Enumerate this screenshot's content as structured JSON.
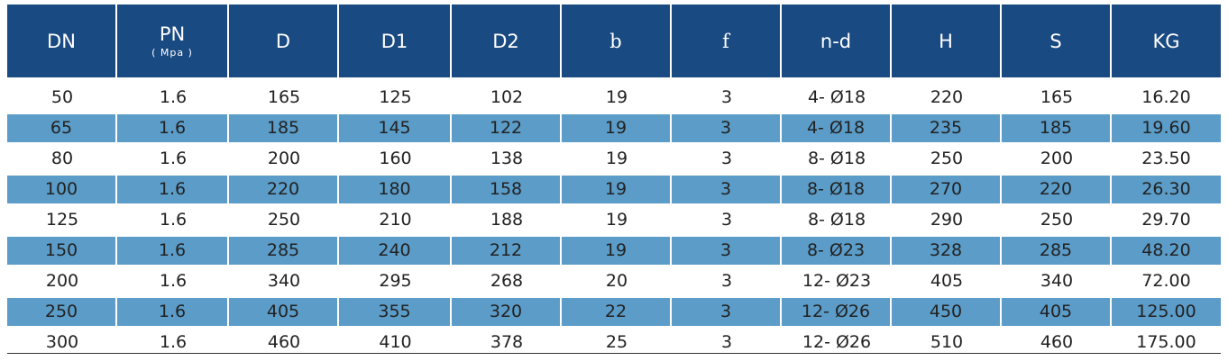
{
  "table": {
    "headers": [
      {
        "label": "DN",
        "sub": ""
      },
      {
        "label": "PN",
        "sub": "( Mpa )"
      },
      {
        "label": "D",
        "sub": ""
      },
      {
        "label": "D1",
        "sub": ""
      },
      {
        "label": "D2",
        "sub": ""
      },
      {
        "label": "b",
        "sub": ""
      },
      {
        "label": "f",
        "sub": ""
      },
      {
        "label": "n-d",
        "sub": ""
      },
      {
        "label": "H",
        "sub": ""
      },
      {
        "label": "S",
        "sub": ""
      },
      {
        "label": "KG",
        "sub": ""
      }
    ],
    "rows": [
      [
        "50",
        "1.6",
        "165",
        "125",
        "102",
        "19",
        "3",
        "4- Ø18",
        "220",
        "165",
        "16.20"
      ],
      [
        "65",
        "1.6",
        "185",
        "145",
        "122",
        "19",
        "3",
        "4- Ø18",
        "235",
        "185",
        "19.60"
      ],
      [
        "80",
        "1.6",
        "200",
        "160",
        "138",
        "19",
        "3",
        "8- Ø18",
        "250",
        "200",
        "23.50"
      ],
      [
        "100",
        "1.6",
        "220",
        "180",
        "158",
        "19",
        "3",
        "8- Ø18",
        "270",
        "220",
        "26.30"
      ],
      [
        "125",
        "1.6",
        "250",
        "210",
        "188",
        "19",
        "3",
        "8- Ø18",
        "290",
        "250",
        "29.70"
      ],
      [
        "150",
        "1.6",
        "285",
        "240",
        "212",
        "19",
        "3",
        "8- Ø23",
        "328",
        "285",
        "48.20"
      ],
      [
        "200",
        "1.6",
        "340",
        "295",
        "268",
        "20",
        "3",
        "12- Ø23",
        "405",
        "340",
        "72.00"
      ],
      [
        "250",
        "1.6",
        "405",
        "355",
        "320",
        "22",
        "3",
        "12- Ø26",
        "450",
        "405",
        "125.00"
      ],
      [
        "300",
        "1.6",
        "460",
        "410",
        "378",
        "25",
        "3",
        "12- Ø26",
        "510",
        "460",
        "175.00"
      ]
    ]
  },
  "colors": {
    "header": "#1a4a82",
    "alt_row": "#5b9cc8",
    "text": "#222222"
  }
}
